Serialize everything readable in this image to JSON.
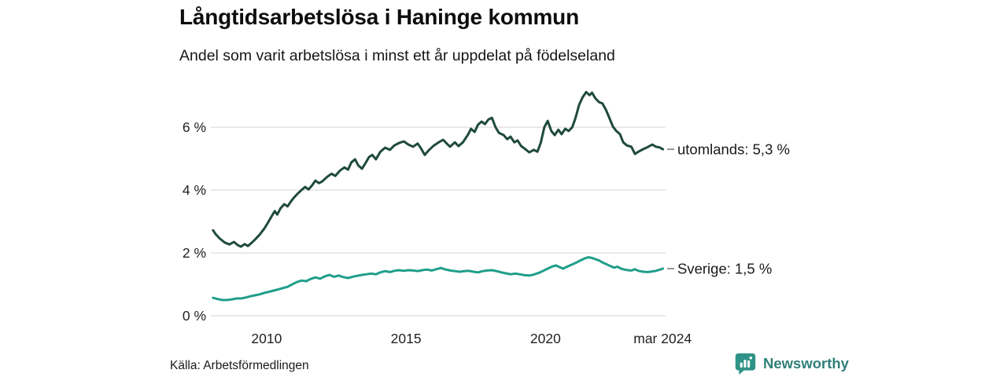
{
  "header": {
    "title": "Långtidsarbetslösa i Haninge kommun",
    "subtitle": "Andel som varit arbetslösa i minst ett år uppdelat på födelseland"
  },
  "footer": {
    "source": "Källa: Arbetsförmedlingen",
    "brand": "Newsworthy"
  },
  "palette": {
    "utomlands_line": "#1f4a3d",
    "sverige_line": "#1f9e8a",
    "gridline": "#dcdcdc",
    "tick_text": "#222222",
    "annotation_text": "#1a1a1a",
    "annotation_dash": "#8a8a8a",
    "brand_teal": "#2f7f78",
    "brand_icon": "#2f9387"
  },
  "chart_data": {
    "type": "line",
    "title": "Långtidsarbetslösa i Haninge kommun",
    "subtitle": "Andel som varit arbetslösa i minst ett år uppdelat på födelseland",
    "xlabel": "",
    "ylabel": "",
    "xlim": [
      2008,
      2024.25
    ],
    "ylim": [
      0,
      7.3
    ],
    "grid": "horizontal",
    "legend_position": "right-end-labels",
    "y_ticks": [
      {
        "y": 0,
        "label": "0 %"
      },
      {
        "y": 2,
        "label": "2 %"
      },
      {
        "y": 4,
        "label": "4 %"
      },
      {
        "y": 6,
        "label": "6 %"
      }
    ],
    "x_ticks": [
      {
        "x": 2010,
        "label": "2010"
      },
      {
        "x": 2015,
        "label": "2015"
      },
      {
        "x": 2020,
        "label": "2020"
      },
      {
        "x": 2024.2,
        "label": "mar 2024"
      }
    ],
    "series": [
      {
        "name": "utomlands",
        "end_label": "utomlands: 5,3 %",
        "end_value": "5,3 %",
        "color": "#1f4a3d",
        "points": [
          [
            2008.08,
            2.72
          ],
          [
            2008.17,
            2.6
          ],
          [
            2008.33,
            2.45
          ],
          [
            2008.5,
            2.33
          ],
          [
            2008.67,
            2.27
          ],
          [
            2008.83,
            2.35
          ],
          [
            2008.96,
            2.25
          ],
          [
            2009.08,
            2.2
          ],
          [
            2009.21,
            2.28
          ],
          [
            2009.33,
            2.22
          ],
          [
            2009.46,
            2.32
          ],
          [
            2009.58,
            2.42
          ],
          [
            2009.75,
            2.58
          ],
          [
            2009.92,
            2.78
          ],
          [
            2010.04,
            2.95
          ],
          [
            2010.17,
            3.15
          ],
          [
            2010.29,
            3.33
          ],
          [
            2010.38,
            3.22
          ],
          [
            2010.5,
            3.42
          ],
          [
            2010.63,
            3.55
          ],
          [
            2010.75,
            3.48
          ],
          [
            2010.88,
            3.65
          ],
          [
            2011.0,
            3.78
          ],
          [
            2011.13,
            3.9
          ],
          [
            2011.25,
            4.0
          ],
          [
            2011.38,
            4.1
          ],
          [
            2011.5,
            4.02
          ],
          [
            2011.63,
            4.15
          ],
          [
            2011.75,
            4.3
          ],
          [
            2011.88,
            4.22
          ],
          [
            2012.0,
            4.28
          ],
          [
            2012.17,
            4.42
          ],
          [
            2012.33,
            4.52
          ],
          [
            2012.46,
            4.45
          ],
          [
            2012.63,
            4.62
          ],
          [
            2012.79,
            4.72
          ],
          [
            2012.92,
            4.65
          ],
          [
            2013.04,
            4.88
          ],
          [
            2013.17,
            4.98
          ],
          [
            2013.29,
            4.78
          ],
          [
            2013.42,
            4.68
          ],
          [
            2013.54,
            4.85
          ],
          [
            2013.67,
            5.05
          ],
          [
            2013.79,
            5.12
          ],
          [
            2013.92,
            4.98
          ],
          [
            2014.08,
            5.22
          ],
          [
            2014.25,
            5.35
          ],
          [
            2014.42,
            5.28
          ],
          [
            2014.58,
            5.42
          ],
          [
            2014.75,
            5.5
          ],
          [
            2014.92,
            5.55
          ],
          [
            2015.08,
            5.45
          ],
          [
            2015.25,
            5.38
          ],
          [
            2015.42,
            5.48
          ],
          [
            2015.54,
            5.32
          ],
          [
            2015.67,
            5.12
          ],
          [
            2015.83,
            5.28
          ],
          [
            2016.0,
            5.42
          ],
          [
            2016.17,
            5.52
          ],
          [
            2016.33,
            5.6
          ],
          [
            2016.46,
            5.48
          ],
          [
            2016.58,
            5.38
          ],
          [
            2016.75,
            5.52
          ],
          [
            2016.88,
            5.4
          ],
          [
            2017.04,
            5.52
          ],
          [
            2017.21,
            5.75
          ],
          [
            2017.33,
            5.95
          ],
          [
            2017.46,
            5.85
          ],
          [
            2017.58,
            6.08
          ],
          [
            2017.71,
            6.18
          ],
          [
            2017.83,
            6.1
          ],
          [
            2017.96,
            6.25
          ],
          [
            2018.08,
            6.3
          ],
          [
            2018.21,
            6.0
          ],
          [
            2018.33,
            5.82
          ],
          [
            2018.5,
            5.75
          ],
          [
            2018.63,
            5.62
          ],
          [
            2018.75,
            5.7
          ],
          [
            2018.88,
            5.52
          ],
          [
            2019.0,
            5.58
          ],
          [
            2019.13,
            5.4
          ],
          [
            2019.25,
            5.32
          ],
          [
            2019.42,
            5.2
          ],
          [
            2019.58,
            5.28
          ],
          [
            2019.71,
            5.22
          ],
          [
            2019.83,
            5.5
          ],
          [
            2019.96,
            6.0
          ],
          [
            2020.08,
            6.2
          ],
          [
            2020.21,
            5.88
          ],
          [
            2020.33,
            5.75
          ],
          [
            2020.46,
            5.92
          ],
          [
            2020.58,
            5.78
          ],
          [
            2020.71,
            5.95
          ],
          [
            2020.83,
            5.88
          ],
          [
            2020.96,
            6.0
          ],
          [
            2021.08,
            6.3
          ],
          [
            2021.21,
            6.72
          ],
          [
            2021.33,
            6.95
          ],
          [
            2021.46,
            7.12
          ],
          [
            2021.58,
            7.02
          ],
          [
            2021.67,
            7.1
          ],
          [
            2021.79,
            6.92
          ],
          [
            2021.92,
            6.8
          ],
          [
            2022.04,
            6.76
          ],
          [
            2022.17,
            6.55
          ],
          [
            2022.29,
            6.3
          ],
          [
            2022.42,
            6.02
          ],
          [
            2022.54,
            5.88
          ],
          [
            2022.67,
            5.78
          ],
          [
            2022.79,
            5.52
          ],
          [
            2022.92,
            5.42
          ],
          [
            2023.08,
            5.38
          ],
          [
            2023.21,
            5.15
          ],
          [
            2023.33,
            5.22
          ],
          [
            2023.5,
            5.3
          ],
          [
            2023.67,
            5.37
          ],
          [
            2023.83,
            5.45
          ],
          [
            2023.96,
            5.38
          ],
          [
            2024.08,
            5.36
          ],
          [
            2024.21,
            5.3
          ]
        ]
      },
      {
        "name": "Sverige",
        "end_label": "Sverige: 1,5 %",
        "end_value": "1,5 %",
        "color": "#1f9e8a",
        "points": [
          [
            2008.08,
            0.57
          ],
          [
            2008.25,
            0.53
          ],
          [
            2008.42,
            0.5
          ],
          [
            2008.58,
            0.5
          ],
          [
            2008.75,
            0.52
          ],
          [
            2008.92,
            0.55
          ],
          [
            2009.08,
            0.55
          ],
          [
            2009.25,
            0.58
          ],
          [
            2009.42,
            0.62
          ],
          [
            2009.58,
            0.65
          ],
          [
            2009.75,
            0.68
          ],
          [
            2009.92,
            0.73
          ],
          [
            2010.08,
            0.76
          ],
          [
            2010.25,
            0.8
          ],
          [
            2010.42,
            0.84
          ],
          [
            2010.58,
            0.88
          ],
          [
            2010.75,
            0.92
          ],
          [
            2010.92,
            1.0
          ],
          [
            2011.08,
            1.07
          ],
          [
            2011.25,
            1.12
          ],
          [
            2011.42,
            1.1
          ],
          [
            2011.58,
            1.17
          ],
          [
            2011.75,
            1.22
          ],
          [
            2011.92,
            1.18
          ],
          [
            2012.08,
            1.25
          ],
          [
            2012.25,
            1.3
          ],
          [
            2012.42,
            1.24
          ],
          [
            2012.58,
            1.28
          ],
          [
            2012.75,
            1.23
          ],
          [
            2012.92,
            1.2
          ],
          [
            2013.08,
            1.24
          ],
          [
            2013.25,
            1.27
          ],
          [
            2013.42,
            1.3
          ],
          [
            2013.58,
            1.32
          ],
          [
            2013.75,
            1.34
          ],
          [
            2013.92,
            1.32
          ],
          [
            2014.08,
            1.38
          ],
          [
            2014.25,
            1.42
          ],
          [
            2014.42,
            1.39
          ],
          [
            2014.58,
            1.43
          ],
          [
            2014.75,
            1.45
          ],
          [
            2014.92,
            1.43
          ],
          [
            2015.08,
            1.45
          ],
          [
            2015.25,
            1.44
          ],
          [
            2015.42,
            1.42
          ],
          [
            2015.58,
            1.45
          ],
          [
            2015.75,
            1.47
          ],
          [
            2015.92,
            1.44
          ],
          [
            2016.08,
            1.48
          ],
          [
            2016.25,
            1.52
          ],
          [
            2016.42,
            1.47
          ],
          [
            2016.58,
            1.44
          ],
          [
            2016.75,
            1.42
          ],
          [
            2016.92,
            1.4
          ],
          [
            2017.08,
            1.42
          ],
          [
            2017.25,
            1.43
          ],
          [
            2017.42,
            1.4
          ],
          [
            2017.58,
            1.38
          ],
          [
            2017.75,
            1.42
          ],
          [
            2017.92,
            1.44
          ],
          [
            2018.08,
            1.45
          ],
          [
            2018.25,
            1.42
          ],
          [
            2018.42,
            1.38
          ],
          [
            2018.58,
            1.35
          ],
          [
            2018.75,
            1.32
          ],
          [
            2018.92,
            1.34
          ],
          [
            2019.08,
            1.32
          ],
          [
            2019.25,
            1.29
          ],
          [
            2019.42,
            1.28
          ],
          [
            2019.58,
            1.31
          ],
          [
            2019.75,
            1.36
          ],
          [
            2019.92,
            1.43
          ],
          [
            2020.08,
            1.5
          ],
          [
            2020.25,
            1.57
          ],
          [
            2020.38,
            1.6
          ],
          [
            2020.5,
            1.55
          ],
          [
            2020.63,
            1.5
          ],
          [
            2020.75,
            1.55
          ],
          [
            2020.92,
            1.62
          ],
          [
            2021.08,
            1.68
          ],
          [
            2021.25,
            1.76
          ],
          [
            2021.42,
            1.83
          ],
          [
            2021.54,
            1.86
          ],
          [
            2021.67,
            1.84
          ],
          [
            2021.79,
            1.8
          ],
          [
            2021.92,
            1.76
          ],
          [
            2022.08,
            1.68
          ],
          [
            2022.21,
            1.63
          ],
          [
            2022.33,
            1.58
          ],
          [
            2022.46,
            1.53
          ],
          [
            2022.58,
            1.56
          ],
          [
            2022.71,
            1.5
          ],
          [
            2022.83,
            1.47
          ],
          [
            2022.96,
            1.45
          ],
          [
            2023.08,
            1.44
          ],
          [
            2023.21,
            1.48
          ],
          [
            2023.33,
            1.43
          ],
          [
            2023.5,
            1.4
          ],
          [
            2023.67,
            1.39
          ],
          [
            2023.83,
            1.41
          ],
          [
            2023.96,
            1.43
          ],
          [
            2024.08,
            1.46
          ],
          [
            2024.21,
            1.5
          ]
        ]
      }
    ]
  }
}
